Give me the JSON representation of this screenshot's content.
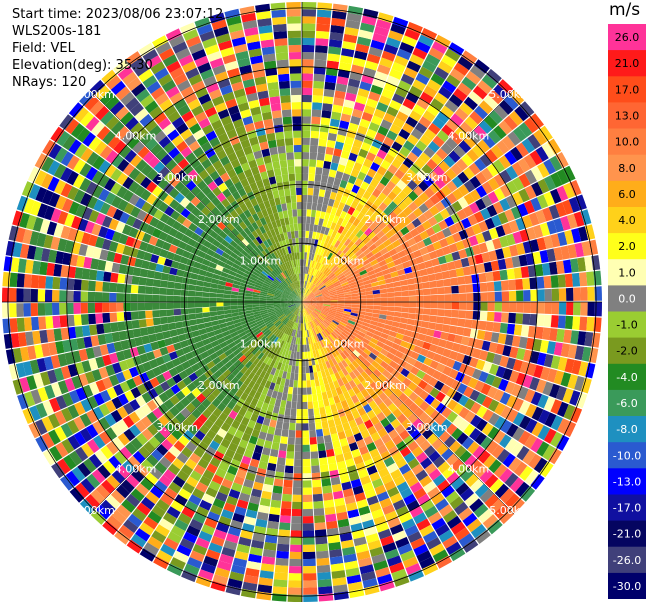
{
  "header": {
    "start_time": "Start time: 2023/08/06 23:07:12",
    "site": "WLS200s-181",
    "field": "Field: VEL",
    "elevation": "Elevation(deg): 35.30",
    "nrays": "NRays: 120"
  },
  "chart_data": {
    "type": "polar-ppi",
    "field": "VEL",
    "units": "m/s",
    "nrays": 120,
    "max_range_km": 5.0,
    "range_ring_labels": [
      "1.00km",
      "2.00km",
      "3.00km",
      "4.00km",
      "5.00km"
    ],
    "colorbar": {
      "ticks": [
        "26.0",
        "21.0",
        "17.0",
        "13.0",
        "10.0",
        "8.0",
        "6.0",
        "4.0",
        "2.0",
        "1.0",
        "0.0",
        "-1.0",
        "-2.0",
        "-4.0",
        "-6.0",
        "-8.0",
        "-10.0",
        "-13.0",
        "-17.0",
        "-21.0",
        "-26.0",
        "-30.0"
      ],
      "colors": [
        "#ff3399",
        "#ff1a1a",
        "#ff4d1a",
        "#ff6633",
        "#ff7f40",
        "#ff944d",
        "#ffad1a",
        "#ffd11a",
        "#ffff1a",
        "#ffffb3",
        "#808080",
        "#9acd32",
        "#7a9a1f",
        "#228b22",
        "#3a9a5a",
        "#1e90c0",
        "#2a5ad0",
        "#0000ff",
        "#1010a0",
        "#050560",
        "#40407a",
        "#00006b"
      ]
    },
    "color_legend": {
      "outbound": "#ff7a3c",
      "inbound": "#5c8a2a",
      "noise": "mixed"
    }
  }
}
